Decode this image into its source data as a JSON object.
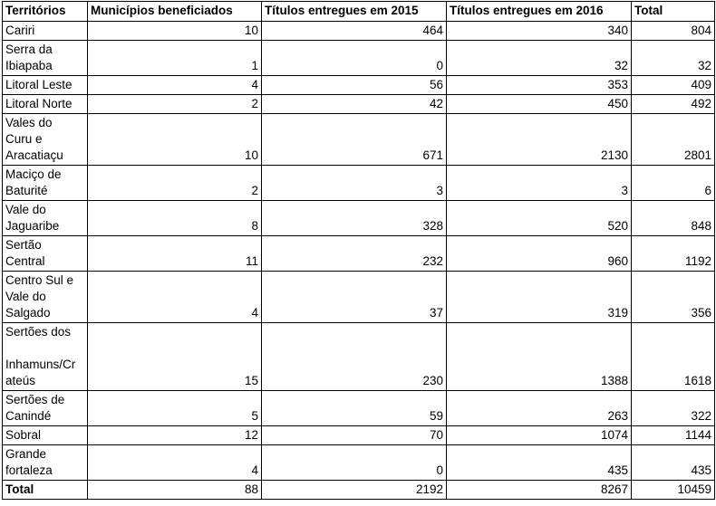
{
  "headers": [
    "Territórios",
    "Municípios beneficiados",
    "Títulos entregues em 2015",
    "Títulos entregues em 2016",
    "Total"
  ],
  "rows": [
    {
      "name": "Cariri",
      "municipios": "10",
      "t2015": "464",
      "t2016": "340",
      "total": "804"
    },
    {
      "name": "Serra      da\nIbiapaba",
      "municipios": "1",
      "t2015": "0",
      "t2016": "32",
      "total": "32"
    },
    {
      "name": "Litoral Leste",
      "municipios": "4",
      "t2015": "56",
      "t2016": "353",
      "total": "409"
    },
    {
      "name": "Litoral Norte",
      "municipios": "2",
      "t2015": "42",
      "t2016": "450",
      "total": "492"
    },
    {
      "name": "Vales      do\nCuru e\n Aracatiaçu",
      "municipios": "10",
      "t2015": "671",
      "t2016": "2130",
      "total": "2801"
    },
    {
      "name": "Maciço     de\nBaturité",
      "municipios": "2",
      "t2015": "3",
      "t2016": "3",
      "total": "6"
    },
    {
      "name": "Vale         do\nJaguaribe",
      "municipios": "8",
      "t2015": "328",
      "t2016": "520",
      "total": "848"
    },
    {
      "name": "Sertão\nCentral",
      "municipios": "11",
      "t2015": "232",
      "t2016": "960",
      "total": "1192"
    },
    {
      "name": "Centro Sul e\nVale do\n Salgado",
      "municipios": "4",
      "t2015": "37",
      "t2016": "319",
      "total": "356"
    },
    {
      "name": "Sertões dos\n\nInhamuns/Cr\nateús",
      "municipios": "15",
      "t2015": "230",
      "t2016": "1388",
      "total": "1618"
    },
    {
      "name": "Sertões     de\nCanindé",
      "municipios": "5",
      "t2015": "59",
      "t2016": "263",
      "total": "322"
    },
    {
      "name": "Sobral",
      "municipios": "12",
      "t2015": "70",
      "t2016": "1074",
      "total": "1144"
    },
    {
      "name": "Grande\nfortaleza",
      "municipios": "4",
      "t2015": "0",
      "t2016": "435",
      "total": "435"
    }
  ],
  "total_row": {
    "name": "Total",
    "municipios": "88",
    "t2015": "2192",
    "t2016": "8267",
    "total": "10459"
  }
}
